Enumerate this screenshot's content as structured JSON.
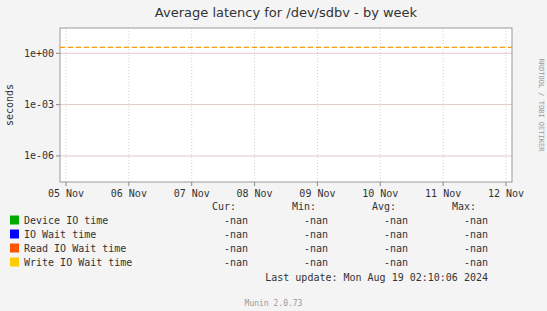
{
  "chart_data": {
    "type": "line",
    "title": "Average latency for /dev/sdbv - by week",
    "ylabel": "seconds",
    "categories": [
      "05 Nov",
      "06 Nov",
      "07 Nov",
      "08 Nov",
      "09 Nov",
      "10 Nov",
      "11 Nov",
      "12 Nov"
    ],
    "series": [
      {
        "name": "Device IO time",
        "color": "#00aa00",
        "values": [
          null,
          null,
          null,
          null,
          null,
          null,
          null,
          null
        ],
        "legend_values": [
          "-nan",
          "-nan",
          "-nan",
          "-nan"
        ]
      },
      {
        "name": "IO Wait time",
        "color": "#0000ff",
        "values": [
          null,
          null,
          null,
          null,
          null,
          null,
          null,
          null
        ],
        "legend_values": [
          "-nan",
          "-nan",
          "-nan",
          "-nan"
        ]
      },
      {
        "name": "Read IO Wait time",
        "color": "#ff5500",
        "values": [
          null,
          null,
          null,
          null,
          null,
          null,
          null,
          null
        ],
        "legend_values": [
          "-nan",
          "-nan",
          "-nan",
          "-nan"
        ]
      },
      {
        "name": "Write IO Wait time",
        "color": "#ffcc00",
        "values": [
          null,
          null,
          null,
          null,
          null,
          null,
          null,
          null
        ],
        "legend_values": [
          "-nan",
          "-nan",
          "-nan",
          "-nan"
        ]
      }
    ],
    "legend_columns": [
      "Cur:",
      "Min:",
      "Avg:",
      "Max:"
    ],
    "hlines": [
      {
        "value": 2.2,
        "color": "#ff9900",
        "line_style": "dashed"
      }
    ],
    "ylim": [
      3e-08,
      30
    ],
    "yticks": [
      {
        "value": 1e-06,
        "label": "1e-06"
      },
      {
        "value": 0.001,
        "label": "1e-03"
      },
      {
        "value": 1,
        "label": "1e+00"
      }
    ],
    "log": "y",
    "grid": true,
    "legend": "bottom",
    "annotations": [
      "RRDTOOL / TOBI OETIKER",
      "Last update: Mon Aug 19 02:10:06 2024",
      "Munin 2.0.73"
    ]
  }
}
